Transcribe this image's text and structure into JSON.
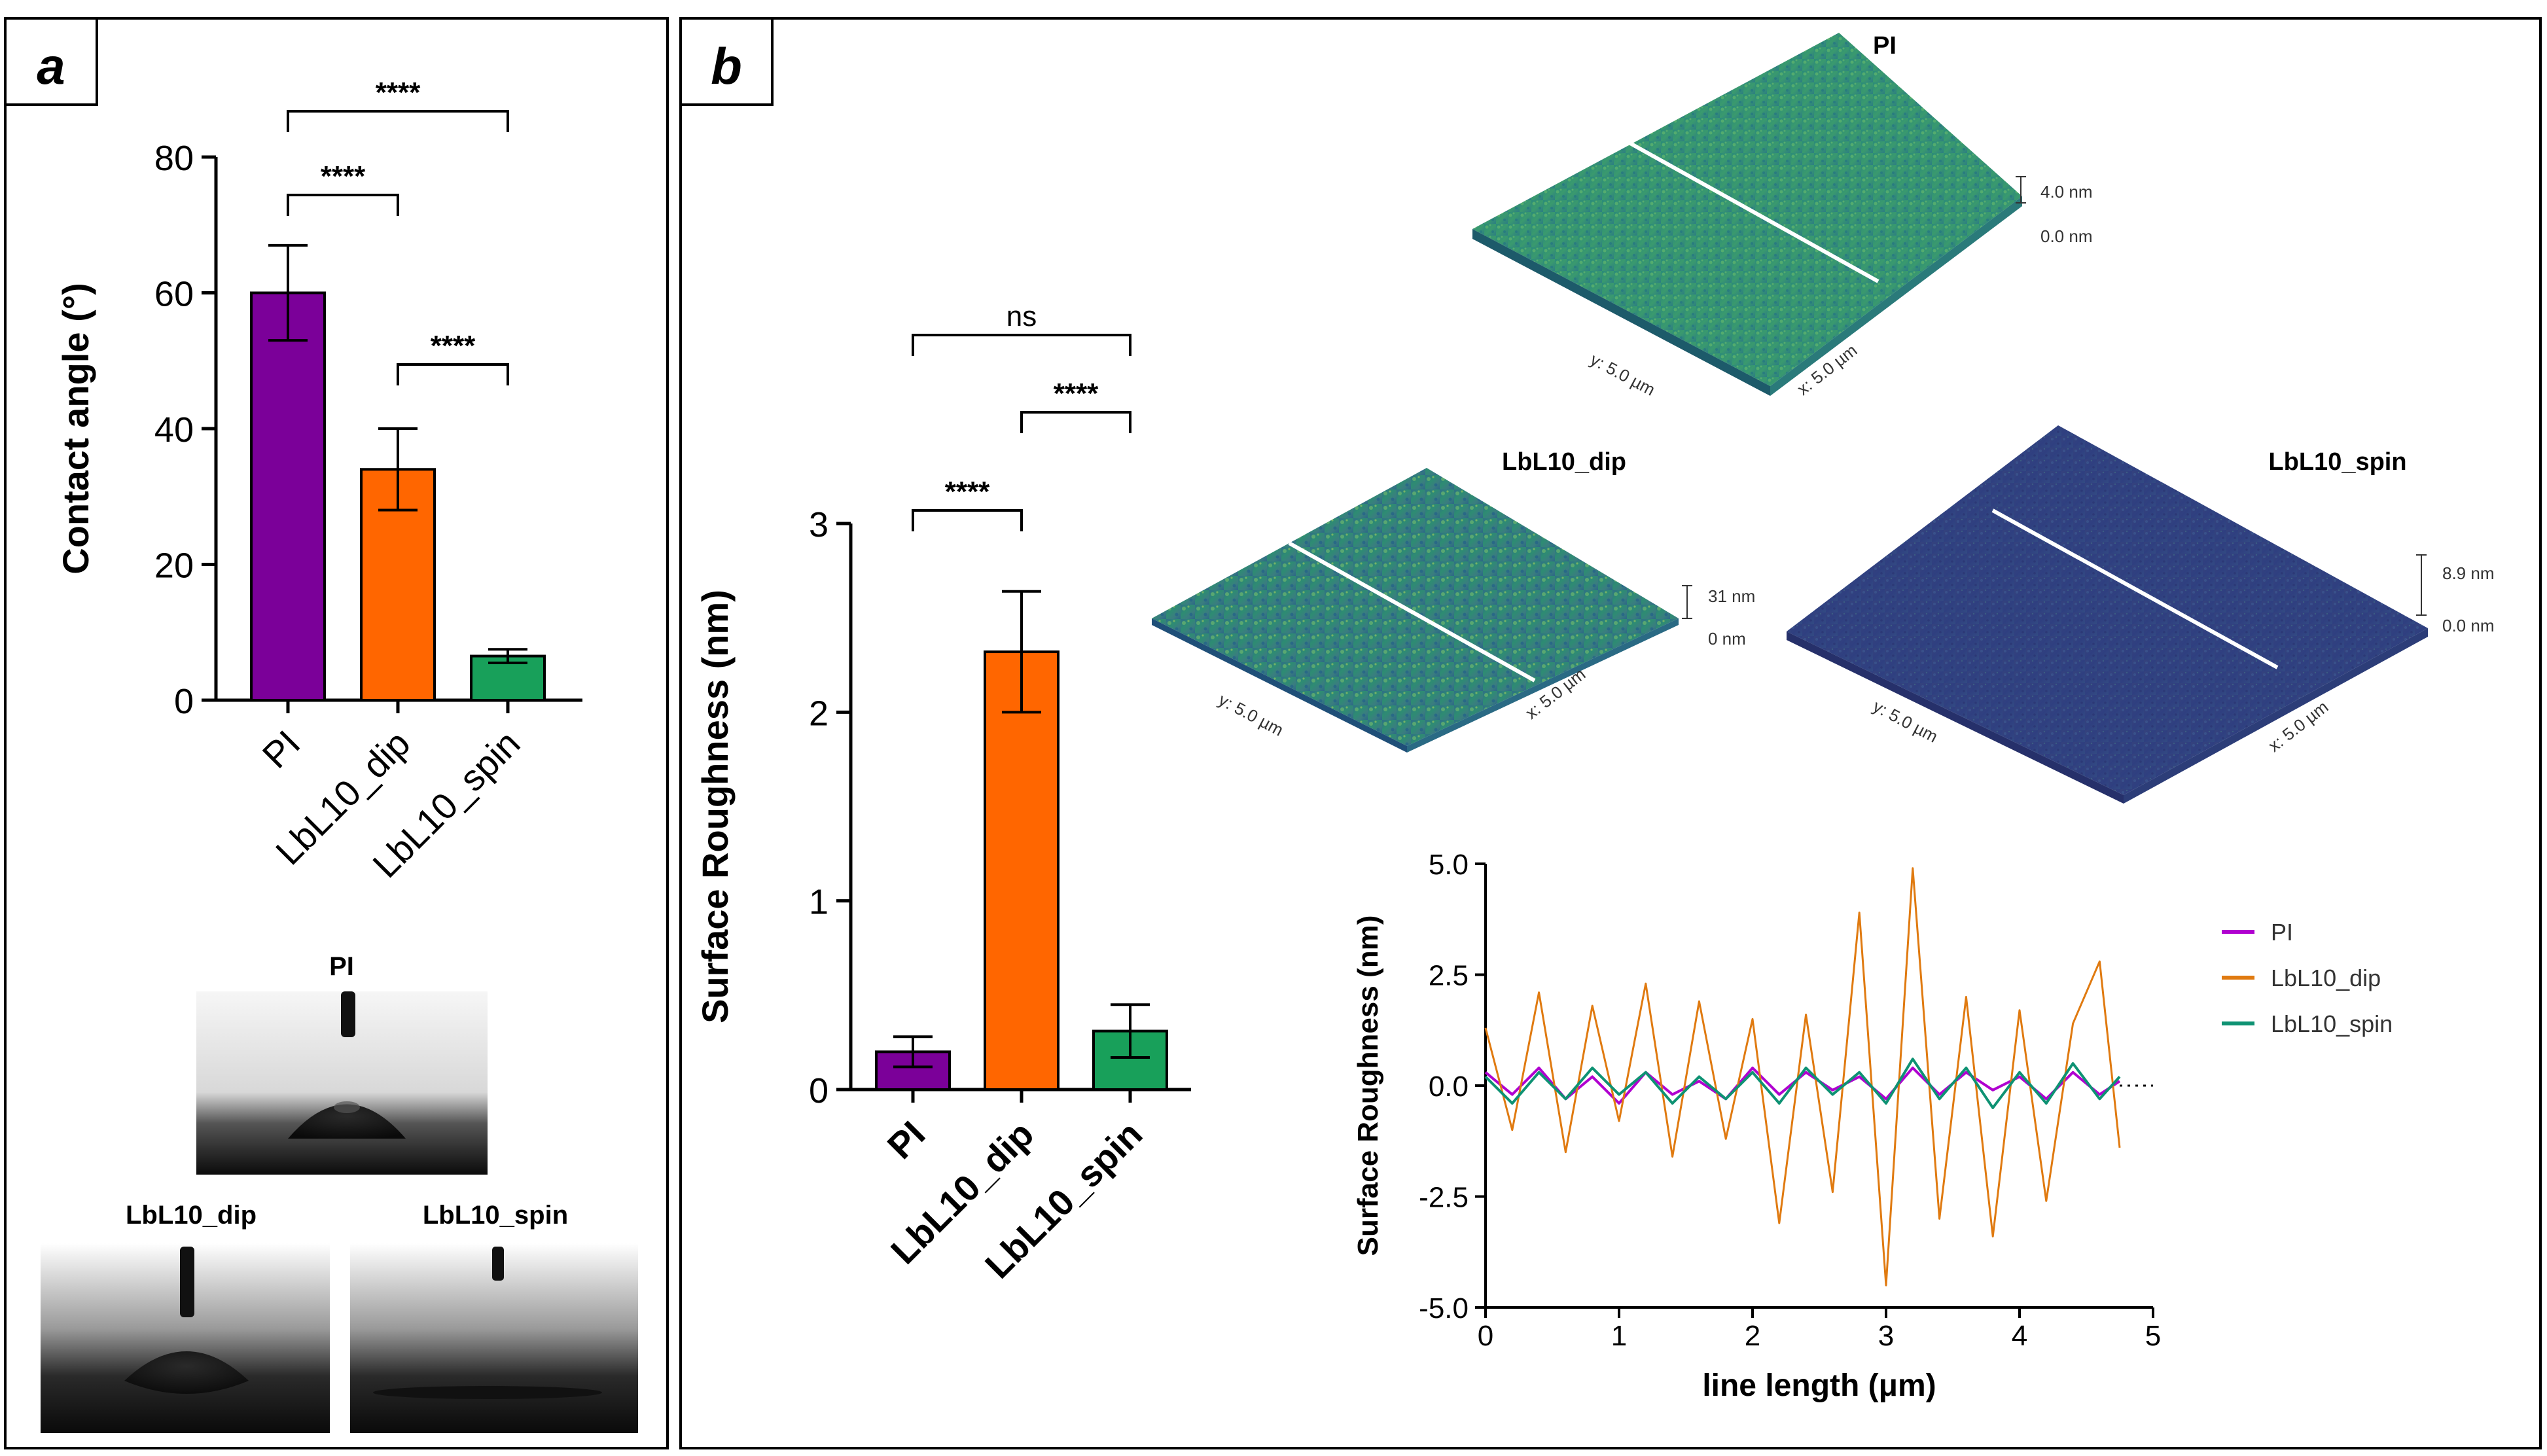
{
  "panel_a": {
    "label": "a",
    "droplet_labels": {
      "pi": "PI",
      "dip": "LbL10_dip",
      "spin": "LbL10_spin"
    }
  },
  "panel_b": {
    "label": "b",
    "afm": {
      "pi": {
        "title": "PI",
        "scale_top": "4.0 nm",
        "scale_bottom": "0.0 nm",
        "y_axis": "y: 5.0 µm",
        "x_axis": "x: 5.0 µm"
      },
      "dip": {
        "title": "LbL10_dip",
        "scale_top": "31 nm",
        "scale_bottom": "0 nm",
        "y_axis": "y: 5.0 µm",
        "x_axis": "x: 5.0 µm"
      },
      "spin": {
        "title": "LbL10_spin",
        "scale_top": "8.9 nm",
        "scale_bottom": "0.0 nm",
        "y_axis": "y: 5.0 µm",
        "x_axis": "x: 5.0 µm"
      }
    }
  },
  "colors": {
    "pi": "#7B0099",
    "dip": "#FF6600",
    "spin": "#18A05A",
    "line_pi": "#B000D0",
    "line_dip": "#E07A10",
    "line_spin": "#0E9273"
  },
  "chart_data": [
    {
      "type": "bar",
      "ylabel": "Contact angle (°)",
      "categories": [
        "PI",
        "LbL10_dip",
        "LbL10_spin"
      ],
      "values": [
        60,
        34,
        6.5
      ],
      "errors": [
        7,
        6,
        1
      ],
      "ylim": [
        0,
        80
      ],
      "yticks": [
        "0",
        "20",
        "40",
        "60",
        "80"
      ],
      "significance": [
        {
          "from": 0,
          "to": 1,
          "label": "****"
        },
        {
          "from": 0,
          "to": 2,
          "label": "****"
        },
        {
          "from": 1,
          "to": 2,
          "label": "****"
        }
      ]
    },
    {
      "type": "bar",
      "ylabel": "Surface Roughness (nm)",
      "categories": [
        "PI",
        "LbL10_dip",
        "LbL10_spin"
      ],
      "values": [
        0.2,
        2.32,
        0.31
      ],
      "errors": [
        0.08,
        0.32,
        0.14
      ],
      "ylim": [
        0,
        3
      ],
      "yticks": [
        "0",
        "1",
        "2",
        "3"
      ],
      "significance": [
        {
          "from": 0,
          "to": 1,
          "label": "****"
        },
        {
          "from": 0,
          "to": 2,
          "label": "ns"
        },
        {
          "from": 1,
          "to": 2,
          "label": "****"
        }
      ]
    },
    {
      "type": "line",
      "xlabel": "line length (μm)",
      "ylabel": "Surface Roughness (nm)",
      "xlim": [
        0,
        5
      ],
      "ylim": [
        -5,
        5
      ],
      "xticks": [
        "0",
        "1",
        "2",
        "3",
        "4",
        "5"
      ],
      "yticks": [
        "-5.0",
        "-2.5",
        "0.0",
        "2.5",
        "5.0"
      ],
      "legend": [
        "PI",
        "LbL10_dip",
        "LbL10_spin"
      ],
      "x": [
        0.0,
        0.2,
        0.4,
        0.6,
        0.8,
        1.0,
        1.2,
        1.4,
        1.6,
        1.8,
        2.0,
        2.2,
        2.4,
        2.6,
        2.8,
        3.0,
        3.2,
        3.4,
        3.6,
        3.8,
        4.0,
        4.2,
        4.4,
        4.6,
        4.75
      ],
      "series": [
        {
          "name": "PI",
          "values": [
            0.3,
            -0.2,
            0.4,
            -0.3,
            0.2,
            -0.4,
            0.3,
            -0.2,
            0.1,
            -0.3,
            0.4,
            -0.2,
            0.3,
            -0.1,
            0.2,
            -0.3,
            0.4,
            -0.2,
            0.3,
            -0.1,
            0.2,
            -0.3,
            0.3,
            -0.2,
            0.1
          ]
        },
        {
          "name": "LbL10_dip",
          "values": [
            1.3,
            -1.0,
            2.1,
            -1.5,
            1.8,
            -0.8,
            2.3,
            -1.6,
            1.9,
            -1.2,
            1.5,
            -3.1,
            1.6,
            -2.4,
            3.9,
            -4.5,
            4.9,
            -3.0,
            2.0,
            -3.4,
            1.7,
            -2.6,
            1.4,
            2.8,
            -1.4
          ]
        },
        {
          "name": "LbL10_spin",
          "values": [
            0.2,
            -0.4,
            0.3,
            -0.3,
            0.4,
            -0.2,
            0.3,
            -0.4,
            0.2,
            -0.3,
            0.3,
            -0.4,
            0.4,
            -0.2,
            0.3,
            -0.4,
            0.6,
            -0.3,
            0.4,
            -0.5,
            0.3,
            -0.4,
            0.5,
            -0.3,
            0.2
          ]
        }
      ]
    }
  ]
}
